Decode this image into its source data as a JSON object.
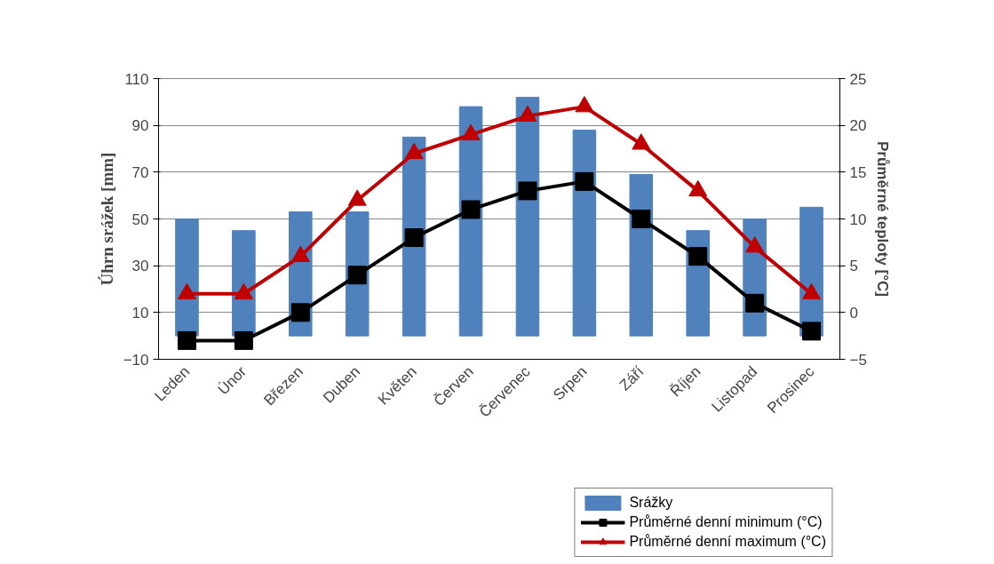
{
  "chart_data": {
    "type": "bar",
    "ylabel": "Úhrn srážek [mm]",
    "y2label": "Průměrné teploty [°C]",
    "categories": [
      "Leden",
      "Únor",
      "Březen",
      "Duben",
      "Květen",
      "Červen",
      "Červenec",
      "Srpen",
      "Září",
      "Říjen",
      "Listopad",
      "Prosinec"
    ],
    "ylim": [
      -10,
      110
    ],
    "yticks": [
      -10,
      10,
      30,
      50,
      70,
      90,
      110
    ],
    "y2lim": [
      -5,
      25
    ],
    "y2ticks": [
      -5,
      0,
      5,
      10,
      15,
      20,
      25
    ],
    "grid": "y",
    "legend": "bottom right",
    "series": [
      {
        "name": "Srážky",
        "color": "#4f81bd",
        "values": [
          50,
          45,
          53,
          53,
          85,
          98,
          102,
          88,
          69,
          45,
          50,
          55
        ]
      },
      {
        "name": "Průměrné denní minimum (°C)",
        "type": "line",
        "axis": "y2",
        "marker": "square",
        "color": "#000000",
        "values": [
          -3,
          -3,
          0,
          4,
          8,
          11,
          13,
          14,
          10,
          6,
          1,
          -2
        ]
      },
      {
        "name": "Průměrné denní maximum (°C)",
        "type": "line",
        "axis": "y2",
        "marker": "triangle",
        "color": "#c00000",
        "values": [
          2,
          2,
          6,
          12,
          17,
          19,
          21,
          22,
          18,
          13,
          7,
          2
        ]
      }
    ]
  }
}
